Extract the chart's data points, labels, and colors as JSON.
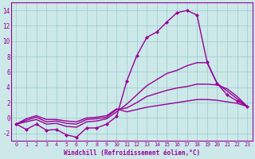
{
  "xlabel": "Windchill (Refroidissement éolien,°C)",
  "x_values": [
    0,
    1,
    2,
    3,
    4,
    5,
    6,
    7,
    8,
    9,
    10,
    11,
    12,
    13,
    14,
    15,
    16,
    17,
    18,
    19,
    20,
    21,
    22,
    23
  ],
  "line_top": [
    -0.8,
    -1.5,
    -0.8,
    -1.6,
    -1.5,
    -2.2,
    -2.5,
    -1.3,
    -1.3,
    -0.8,
    0.2,
    4.8,
    8.1,
    10.5,
    11.2,
    12.5,
    13.7,
    14.0,
    13.4,
    7.3,
    4.5,
    3.0,
    2.2,
    1.5
  ],
  "line_high": [
    -0.8,
    -0.5,
    -0.2,
    -0.8,
    -0.7,
    -1.1,
    -1.2,
    -0.5,
    -0.4,
    -0.1,
    0.8,
    1.8,
    3.0,
    4.2,
    5.0,
    5.8,
    6.2,
    6.8,
    7.2,
    7.2,
    4.5,
    3.5,
    2.5,
    1.5
  ],
  "line_mid": [
    -0.8,
    -0.3,
    0.1,
    -0.5,
    -0.4,
    -0.7,
    -0.8,
    -0.2,
    -0.1,
    0.1,
    1.1,
    1.3,
    2.0,
    2.8,
    3.2,
    3.6,
    3.9,
    4.1,
    4.4,
    4.4,
    4.3,
    3.8,
    2.8,
    1.5
  ],
  "line_low": [
    -0.8,
    -0.1,
    0.3,
    -0.2,
    -0.2,
    -0.4,
    -0.5,
    0.0,
    0.1,
    0.3,
    1.2,
    0.8,
    1.1,
    1.4,
    1.6,
    1.8,
    2.0,
    2.2,
    2.4,
    2.4,
    2.3,
    2.1,
    1.9,
    1.5
  ],
  "line_color": "#990099",
  "bg_color": "#cce8e8",
  "grid_color": "#99cccc",
  "ylim": [
    -3,
    15
  ],
  "yticks": [
    -2,
    0,
    2,
    4,
    6,
    8,
    10,
    12,
    14
  ],
  "marker": "D",
  "marker_size": 2.5,
  "line_width": 1.0
}
